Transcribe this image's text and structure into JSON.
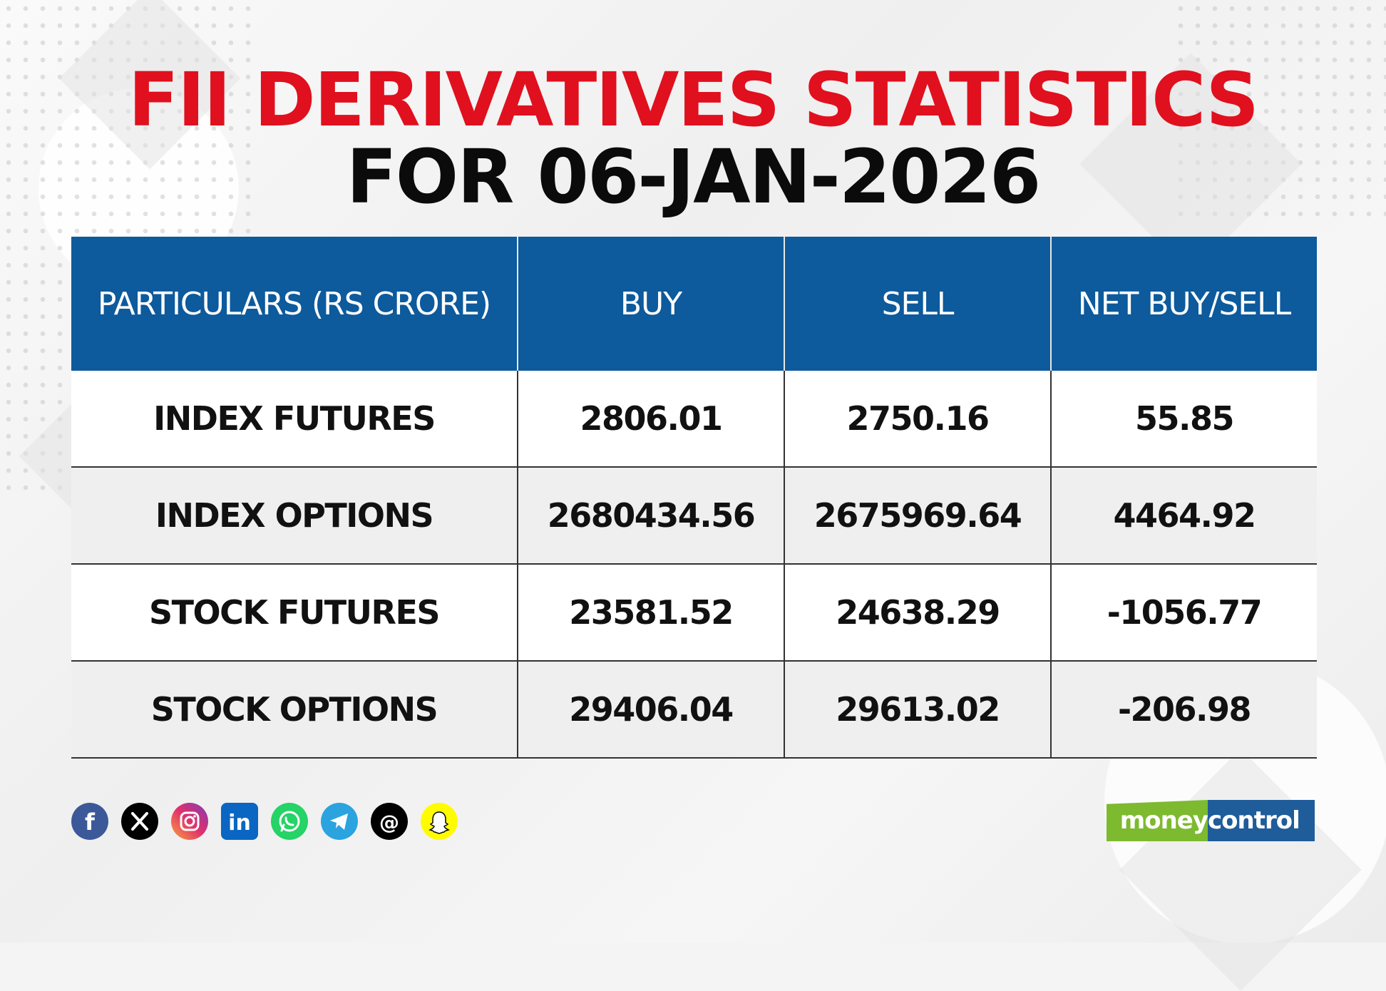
{
  "title": {
    "line1": "FII DERIVATIVES STATISTICS",
    "line2": "FOR 06-JAN-2026"
  },
  "table": {
    "headers": [
      "PARTICULARS (RS CRORE)",
      "BUY",
      "SELL",
      "NET BUY/SELL"
    ],
    "rows": [
      [
        "INDEX FUTURES",
        "2806.01",
        "2750.16",
        "55.85"
      ],
      [
        "INDEX OPTIONS",
        "2680434.56",
        "2675969.64",
        "4464.92"
      ],
      [
        "STOCK FUTURES",
        "23581.52",
        "24638.29",
        "-1056.77"
      ],
      [
        "STOCK OPTIONS",
        "29406.04",
        "29613.02",
        "-206.98"
      ]
    ]
  },
  "colors": {
    "title_red": "#e0101e",
    "header_blue": "#0d5a9c",
    "logo_green": "#7dba2f",
    "logo_blue": "#1f5c9a"
  },
  "social_icons": [
    {
      "name": "facebook-icon",
      "color": "#3b5998"
    },
    {
      "name": "x-icon",
      "color": "#000000"
    },
    {
      "name": "instagram-icon",
      "color": "#d6249f"
    },
    {
      "name": "linkedin-icon",
      "color": "#0a66c2"
    },
    {
      "name": "whatsapp-icon",
      "color": "#25d366"
    },
    {
      "name": "telegram-icon",
      "color": "#2aa3df"
    },
    {
      "name": "threads-icon",
      "color": "#000000"
    },
    {
      "name": "snapchat-icon",
      "color": "#fffc00"
    }
  ],
  "logo": {
    "part1": "money",
    "part2": "control"
  }
}
